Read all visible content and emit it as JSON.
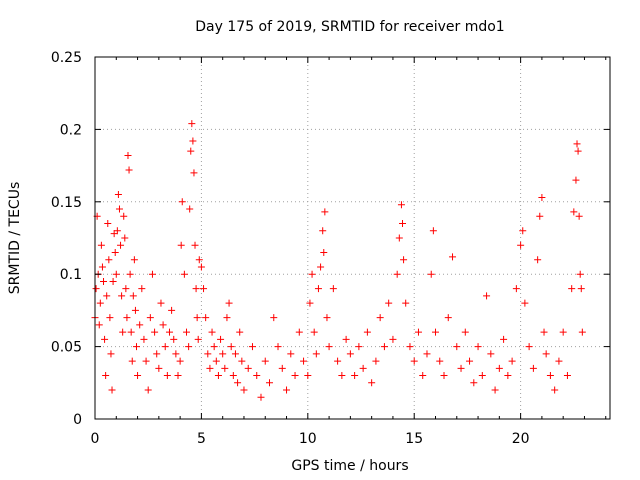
{
  "chart_data": {
    "type": "scatter",
    "title": "Day 175 of 2019, SRMTID for receiver mdo1",
    "xlabel": "GPS time / hours",
    "ylabel": "SRMTID / TECUs",
    "xlim": [
      0,
      24.2
    ],
    "ylim": [
      0,
      0.25
    ],
    "x_ticks": [
      0,
      5,
      10,
      15,
      20
    ],
    "y_ticks": [
      0,
      0.05,
      0.1,
      0.15,
      0.2,
      0.25
    ],
    "x_tick_labels": [
      "0",
      "5",
      "10",
      "15",
      "20"
    ],
    "y_tick_labels": [
      "0",
      "0.05",
      "0.1",
      "0.15",
      "0.2",
      "0.25"
    ],
    "grid": true,
    "marker": "plus",
    "marker_color": "#ff0000",
    "series": [
      {
        "name": "mdo1",
        "points": [
          [
            0.0,
            0.07
          ],
          [
            0.05,
            0.09
          ],
          [
            0.1,
            0.14
          ],
          [
            0.15,
            0.1
          ],
          [
            0.2,
            0.065
          ],
          [
            0.25,
            0.08
          ],
          [
            0.3,
            0.12
          ],
          [
            0.35,
            0.105
          ],
          [
            0.4,
            0.095
          ],
          [
            0.45,
            0.055
          ],
          [
            0.5,
            0.03
          ],
          [
            0.55,
            0.085
          ],
          [
            0.6,
            0.135
          ],
          [
            0.65,
            0.11
          ],
          [
            0.7,
            0.07
          ],
          [
            0.75,
            0.045
          ],
          [
            0.8,
            0.02
          ],
          [
            0.85,
            0.095
          ],
          [
            0.9,
            0.128
          ],
          [
            0.95,
            0.115
          ],
          [
            1.0,
            0.1
          ],
          [
            1.05,
            0.13
          ],
          [
            1.1,
            0.155
          ],
          [
            1.15,
            0.145
          ],
          [
            1.2,
            0.12
          ],
          [
            1.25,
            0.085
          ],
          [
            1.3,
            0.06
          ],
          [
            1.35,
            0.14
          ],
          [
            1.4,
            0.125
          ],
          [
            1.45,
            0.09
          ],
          [
            1.5,
            0.07
          ],
          [
            1.55,
            0.182
          ],
          [
            1.6,
            0.172
          ],
          [
            1.65,
            0.1
          ],
          [
            1.7,
            0.06
          ],
          [
            1.75,
            0.04
          ],
          [
            1.8,
            0.085
          ],
          [
            1.85,
            0.11
          ],
          [
            1.9,
            0.075
          ],
          [
            1.95,
            0.05
          ],
          [
            2.0,
            0.03
          ],
          [
            2.1,
            0.065
          ],
          [
            2.2,
            0.09
          ],
          [
            2.3,
            0.055
          ],
          [
            2.4,
            0.04
          ],
          [
            2.5,
            0.02
          ],
          [
            2.6,
            0.07
          ],
          [
            2.7,
            0.1
          ],
          [
            2.8,
            0.06
          ],
          [
            2.9,
            0.045
          ],
          [
            3.0,
            0.035
          ],
          [
            3.1,
            0.08
          ],
          [
            3.2,
            0.065
          ],
          [
            3.3,
            0.05
          ],
          [
            3.4,
            0.03
          ],
          [
            3.5,
            0.06
          ],
          [
            3.6,
            0.075
          ],
          [
            3.7,
            0.055
          ],
          [
            3.8,
            0.045
          ],
          [
            3.9,
            0.03
          ],
          [
            4.0,
            0.04
          ],
          [
            4.05,
            0.12
          ],
          [
            4.1,
            0.15
          ],
          [
            4.2,
            0.1
          ],
          [
            4.3,
            0.06
          ],
          [
            4.4,
            0.05
          ],
          [
            4.45,
            0.145
          ],
          [
            4.5,
            0.185
          ],
          [
            4.55,
            0.204
          ],
          [
            4.6,
            0.192
          ],
          [
            4.65,
            0.17
          ],
          [
            4.7,
            0.12
          ],
          [
            4.75,
            0.09
          ],
          [
            4.8,
            0.07
          ],
          [
            4.85,
            0.055
          ],
          [
            4.9,
            0.11
          ],
          [
            5.0,
            0.105
          ],
          [
            5.1,
            0.09
          ],
          [
            5.2,
            0.07
          ],
          [
            5.3,
            0.045
          ],
          [
            5.4,
            0.035
          ],
          [
            5.5,
            0.06
          ],
          [
            5.6,
            0.05
          ],
          [
            5.7,
            0.04
          ],
          [
            5.8,
            0.03
          ],
          [
            5.9,
            0.055
          ],
          [
            6.0,
            0.045
          ],
          [
            6.1,
            0.035
          ],
          [
            6.2,
            0.07
          ],
          [
            6.3,
            0.08
          ],
          [
            6.4,
            0.05
          ],
          [
            6.5,
            0.03
          ],
          [
            6.6,
            0.045
          ],
          [
            6.7,
            0.025
          ],
          [
            6.8,
            0.06
          ],
          [
            6.9,
            0.04
          ],
          [
            7.0,
            0.02
          ],
          [
            7.2,
            0.035
          ],
          [
            7.4,
            0.05
          ],
          [
            7.6,
            0.03
          ],
          [
            7.8,
            0.015
          ],
          [
            8.0,
            0.04
          ],
          [
            8.2,
            0.025
          ],
          [
            8.4,
            0.07
          ],
          [
            8.6,
            0.05
          ],
          [
            8.8,
            0.035
          ],
          [
            9.0,
            0.02
          ],
          [
            9.2,
            0.045
          ],
          [
            9.4,
            0.03
          ],
          [
            9.6,
            0.06
          ],
          [
            9.8,
            0.04
          ],
          [
            10.0,
            0.03
          ],
          [
            10.1,
            0.08
          ],
          [
            10.2,
            0.1
          ],
          [
            10.3,
            0.06
          ],
          [
            10.4,
            0.045
          ],
          [
            10.5,
            0.09
          ],
          [
            10.6,
            0.105
          ],
          [
            10.7,
            0.13
          ],
          [
            10.75,
            0.115
          ],
          [
            10.8,
            0.143
          ],
          [
            10.9,
            0.07
          ],
          [
            11.0,
            0.05
          ],
          [
            11.2,
            0.09
          ],
          [
            11.4,
            0.04
          ],
          [
            11.6,
            0.03
          ],
          [
            11.8,
            0.055
          ],
          [
            12.0,
            0.045
          ],
          [
            12.2,
            0.03
          ],
          [
            12.4,
            0.05
          ],
          [
            12.6,
            0.035
          ],
          [
            12.8,
            0.06
          ],
          [
            13.0,
            0.025
          ],
          [
            13.2,
            0.04
          ],
          [
            13.4,
            0.07
          ],
          [
            13.6,
            0.05
          ],
          [
            13.8,
            0.08
          ],
          [
            14.0,
            0.055
          ],
          [
            14.2,
            0.1
          ],
          [
            14.3,
            0.125
          ],
          [
            14.4,
            0.148
          ],
          [
            14.45,
            0.135
          ],
          [
            14.5,
            0.11
          ],
          [
            14.6,
            0.08
          ],
          [
            14.8,
            0.05
          ],
          [
            15.0,
            0.04
          ],
          [
            15.2,
            0.06
          ],
          [
            15.4,
            0.03
          ],
          [
            15.6,
            0.045
          ],
          [
            15.8,
            0.1
          ],
          [
            15.9,
            0.13
          ],
          [
            16.0,
            0.06
          ],
          [
            16.2,
            0.04
          ],
          [
            16.4,
            0.03
          ],
          [
            16.6,
            0.07
          ],
          [
            16.8,
            0.112
          ],
          [
            17.0,
            0.05
          ],
          [
            17.2,
            0.035
          ],
          [
            17.4,
            0.06
          ],
          [
            17.6,
            0.04
          ],
          [
            17.8,
            0.025
          ],
          [
            18.0,
            0.05
          ],
          [
            18.2,
            0.03
          ],
          [
            18.4,
            0.085
          ],
          [
            18.6,
            0.045
          ],
          [
            18.8,
            0.02
          ],
          [
            19.0,
            0.035
          ],
          [
            19.2,
            0.055
          ],
          [
            19.4,
            0.03
          ],
          [
            19.6,
            0.04
          ],
          [
            19.8,
            0.09
          ],
          [
            20.0,
            0.12
          ],
          [
            20.1,
            0.13
          ],
          [
            20.2,
            0.08
          ],
          [
            20.4,
            0.05
          ],
          [
            20.6,
            0.035
          ],
          [
            20.8,
            0.11
          ],
          [
            20.9,
            0.14
          ],
          [
            21.0,
            0.153
          ],
          [
            21.1,
            0.06
          ],
          [
            21.2,
            0.045
          ],
          [
            21.4,
            0.03
          ],
          [
            21.6,
            0.02
          ],
          [
            21.8,
            0.04
          ],
          [
            22.0,
            0.06
          ],
          [
            22.2,
            0.03
          ],
          [
            22.4,
            0.09
          ],
          [
            22.5,
            0.143
          ],
          [
            22.6,
            0.165
          ],
          [
            22.65,
            0.19
          ],
          [
            22.7,
            0.185
          ],
          [
            22.75,
            0.14
          ],
          [
            22.8,
            0.1
          ],
          [
            22.85,
            0.09
          ],
          [
            22.9,
            0.06
          ]
        ]
      }
    ]
  }
}
